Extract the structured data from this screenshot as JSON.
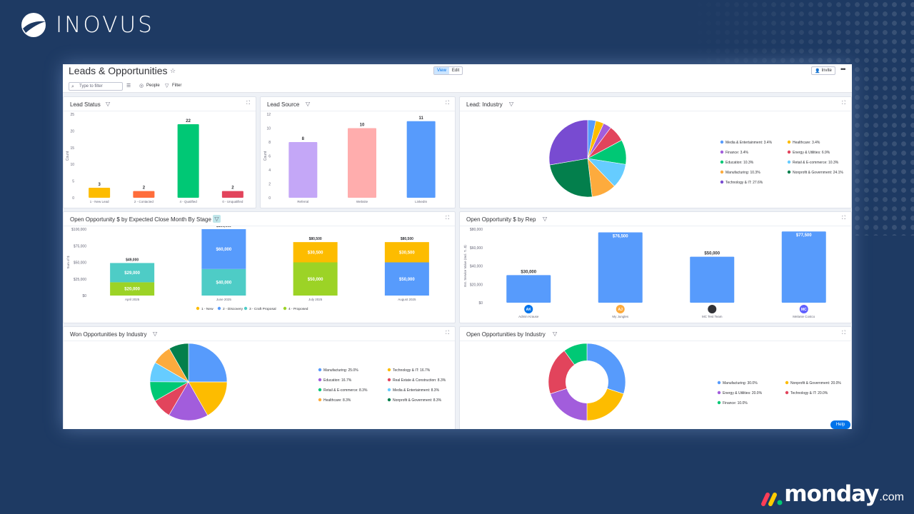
{
  "brand": {
    "name": "INOVUS"
  },
  "footer_brand": {
    "name": "monday",
    "suffix": ".com"
  },
  "board": {
    "title": "Leads & Opportunities"
  },
  "toolbar": {
    "view_label": "View",
    "edit_label": "Edit",
    "invite_label": "Invite",
    "search_placeholder": "Type to filter",
    "people_label": "People",
    "filter_label": "Filter"
  },
  "help_label": "Help",
  "widgets": {
    "lead_status": {
      "title": "Lead Status"
    },
    "lead_source": {
      "title": "Lead Source"
    },
    "lead_industry": {
      "title": "Lead: Industry"
    },
    "open_by_month": {
      "title": "Open Opportunity $ by Expected Close Month By Stage"
    },
    "open_by_rep": {
      "title": "Open Opportunity $ by Rep"
    },
    "won_by_industry": {
      "title": "Won Opportunities by Industry"
    },
    "open_by_industry": {
      "title": "Open Opportunities by Industry"
    }
  },
  "colors": {
    "accent": "#0073ea",
    "background": "#1e3a63"
  },
  "chart_data": [
    {
      "id": "lead_status",
      "type": "bar",
      "ylabel": "Count",
      "ylim": [
        0,
        25
      ],
      "yticks": [
        "0",
        "5",
        "10",
        "15",
        "20",
        "25"
      ],
      "categories": [
        "1 - New Lead",
        "2 - Contacted",
        "4 - Qualified",
        "0 - Unqualified"
      ],
      "values": [
        3,
        2,
        22,
        2
      ],
      "value_labels": [
        "3",
        "2",
        "22",
        "2"
      ],
      "colors": [
        "#fdbc00",
        "#ff6d3b",
        "#00c875",
        "#e2445c"
      ]
    },
    {
      "id": "lead_source",
      "type": "bar",
      "ylabel": "Count",
      "ylim": [
        0,
        12
      ],
      "yticks": [
        "0",
        "2",
        "4",
        "6",
        "8",
        "10",
        "12"
      ],
      "categories": [
        "Referral",
        "Website",
        "LinkedIn"
      ],
      "values": [
        8,
        10,
        11
      ],
      "value_labels": [
        "8",
        "10",
        "11"
      ],
      "colors": [
        "#c4a7f7",
        "#ffadad",
        "#579bfc"
      ]
    },
    {
      "id": "lead_industry",
      "type": "pie",
      "slices": [
        {
          "label": "Media & Entertainment: 3.4%",
          "value": 3.4,
          "color": "#579bfc"
        },
        {
          "label": "Healthcare: 3.4%",
          "value": 3.4,
          "color": "#fdbc00"
        },
        {
          "label": "Finance: 3.4%",
          "value": 3.4,
          "color": "#a25ddc"
        },
        {
          "label": "Energy & Utilities: 6.9%",
          "value": 6.9,
          "color": "#e2445c"
        },
        {
          "label": "Education: 10.3%",
          "value": 10.3,
          "color": "#00c875"
        },
        {
          "label": "Retail & E-commerce: 10.3%",
          "value": 10.3,
          "color": "#66ccff"
        },
        {
          "label": "Manufacturing: 10.3%",
          "value": 10.3,
          "color": "#fdab3d"
        },
        {
          "label": "Nonprofit & Government: 24.1%",
          "value": 24.1,
          "color": "#037f4c"
        },
        {
          "label": "Technology & IT: 27.6%",
          "value": 27.6,
          "color": "#784bd1"
        }
      ]
    },
    {
      "id": "open_by_month",
      "type": "bar",
      "stacked": true,
      "ylabel": "Sum of $",
      "ylim": [
        0,
        100000
      ],
      "yticks": [
        "$0",
        "$25,000",
        "$50,000",
        "$75,000",
        "$100,000"
      ],
      "categories": [
        "April 2025",
        "June 2025",
        "July 2025",
        "August 2025"
      ],
      "totals": [
        "$49,000",
        "$100,000",
        "$80,500",
        "$80,500"
      ],
      "series": [
        {
          "name": "1 - New",
          "color": "#fdbc00",
          "values": [
            0,
            0,
            30500,
            30500
          ],
          "labels": [
            "",
            "",
            "$30,500",
            "$30,500"
          ]
        },
        {
          "name": "2 - Discovery",
          "color": "#579bfc",
          "values": [
            0,
            60000,
            0,
            50000
          ],
          "labels": [
            "",
            "$60,000",
            "",
            "$50,000"
          ]
        },
        {
          "name": "3 - Craft Proposal",
          "color": "#4eccc6",
          "values": [
            29000,
            40000,
            0,
            0
          ],
          "labels": [
            "$29,000",
            "$40,000",
            "",
            ""
          ]
        },
        {
          "name": "4 - Proposed",
          "color": "#9cd326",
          "values": [
            20000,
            0,
            50000,
            0
          ],
          "labels": [
            "$20,000",
            "",
            "$50,000",
            ""
          ]
        }
      ]
    },
    {
      "id": "open_by_rep",
      "type": "bar",
      "ylabel": "Est. Service Value (Incl. T...$)",
      "ylim": [
        0,
        80000
      ],
      "yticks": [
        "$0",
        "$20,000",
        "$40,000",
        "$60,000",
        "$80,000"
      ],
      "categories": [
        "Admin Krause",
        "My Jungles",
        "MC Test Team",
        "Melanie Costco"
      ],
      "initials": [
        "AK",
        "AJ",
        "",
        "MC"
      ],
      "avatar_colors": [
        "#0073ea",
        "#fdab3d",
        "#323338",
        "#6161ff"
      ],
      "values": [
        30000,
        76500,
        50000,
        77500
      ],
      "value_labels": [
        "$30,000",
        "$76,500",
        "$50,000",
        "$77,500"
      ],
      "color": "#579bfc"
    },
    {
      "id": "won_by_industry",
      "type": "pie",
      "slices": [
        {
          "label": "Manufacturing: 25.0%",
          "value": 25.0,
          "color": "#579bfc"
        },
        {
          "label": "Technology & IT: 16.7%",
          "value": 16.7,
          "color": "#fdbc00"
        },
        {
          "label": "Education: 16.7%",
          "value": 16.7,
          "color": "#a25ddc"
        },
        {
          "label": "Real Estate & Construction: 8.3%",
          "value": 8.3,
          "color": "#e2445c"
        },
        {
          "label": "Retail & E-commerce: 8.3%",
          "value": 8.3,
          "color": "#00c875"
        },
        {
          "label": "Media & Entertainment: 8.3%",
          "value": 8.3,
          "color": "#66ccff"
        },
        {
          "label": "Healthcare: 8.3%",
          "value": 8.3,
          "color": "#fdab3d"
        },
        {
          "label": "Nonprofit & Government: 8.3%",
          "value": 8.3,
          "color": "#037f4c"
        }
      ]
    },
    {
      "id": "open_by_industry",
      "type": "pie",
      "donut": true,
      "slices": [
        {
          "label": "Manufacturing: 30.0%",
          "value": 30.0,
          "color": "#579bfc"
        },
        {
          "label": "Nonprofit & Government: 20.0%",
          "value": 20.0,
          "color": "#fdbc00"
        },
        {
          "label": "Energy & Utilities: 20.0%",
          "value": 20.0,
          "color": "#a25ddc"
        },
        {
          "label": "Technology & IT: 20.0%",
          "value": 20.0,
          "color": "#e2445c"
        },
        {
          "label": "Finance: 10.0%",
          "value": 10.0,
          "color": "#00c875"
        }
      ]
    }
  ]
}
